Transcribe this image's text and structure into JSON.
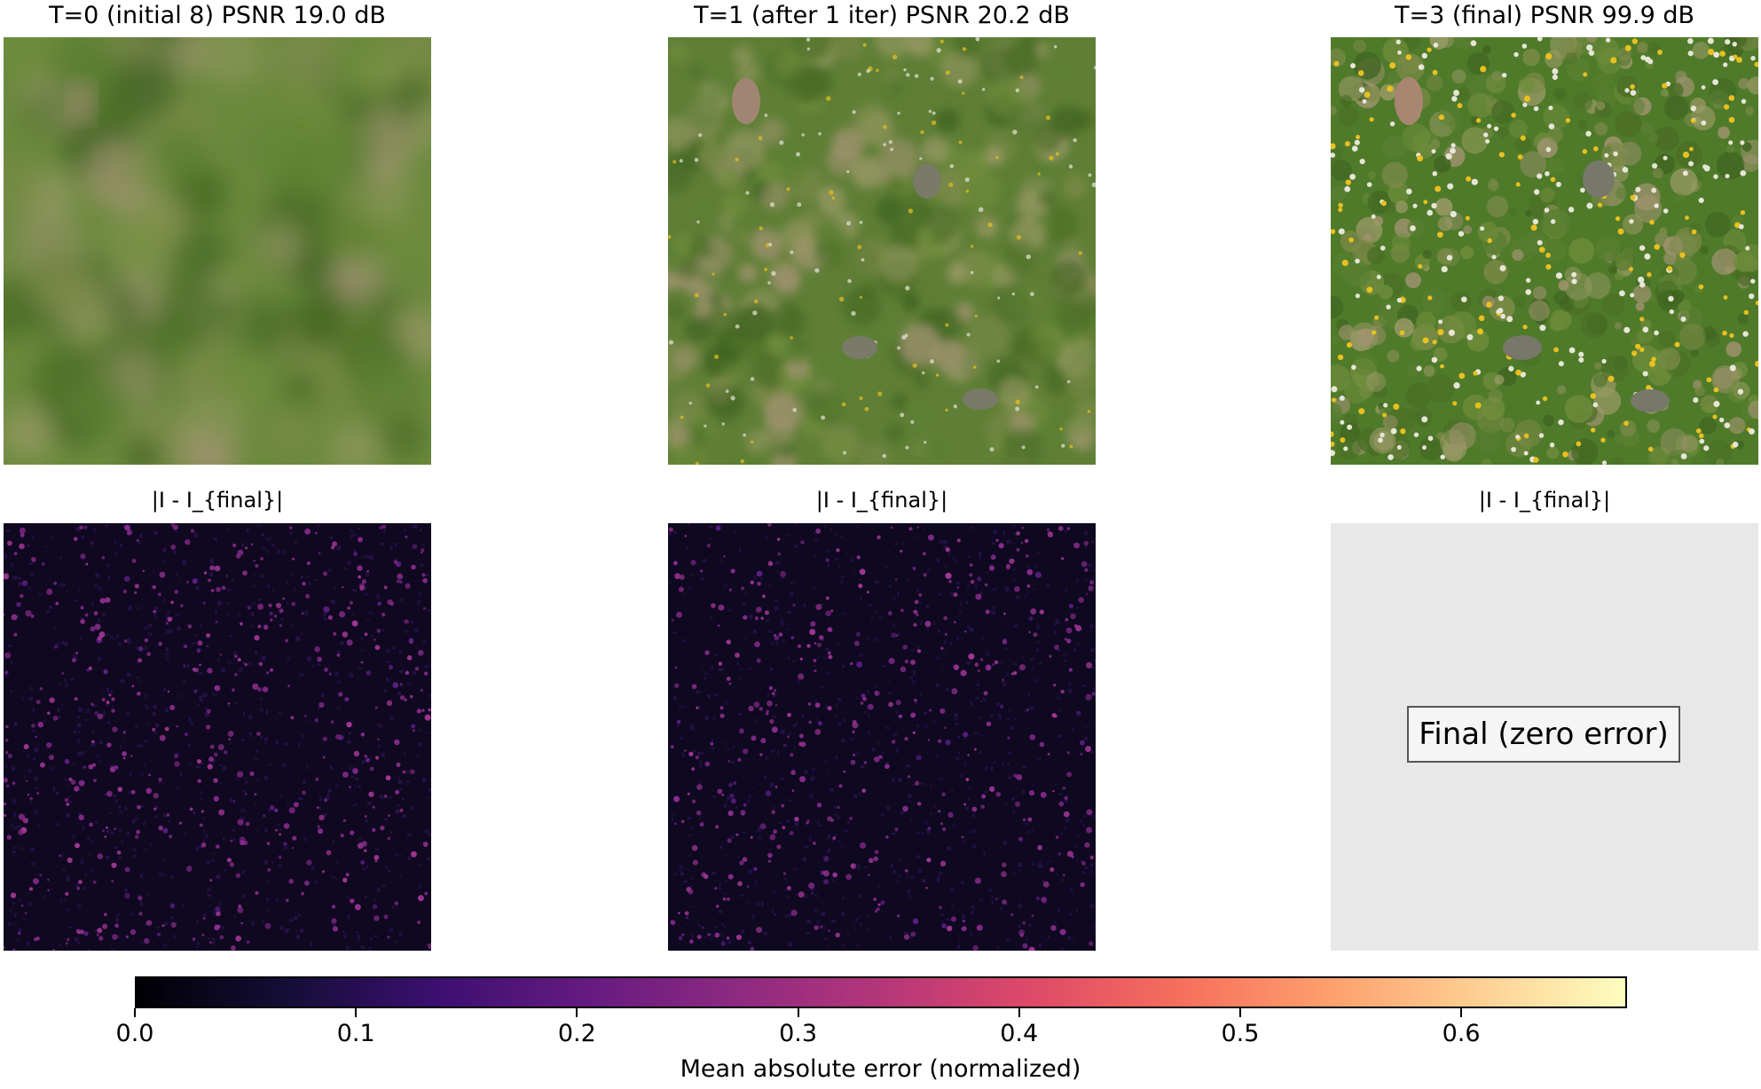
{
  "panels": {
    "titles": [
      "T=0 (initial 8)  PSNR 19.0 dB",
      "T=1 (after 1 iter)  PSNR 20.2 dB",
      "T=3 (final)  PSNR 99.9 dB"
    ],
    "error_title": "|I - I_{final}|",
    "final_note": "Final (zero error)"
  },
  "colorbar": {
    "label": "Mean absolute error (normalized)",
    "colormap": "magma",
    "range": [
      0.0,
      0.675
    ],
    "ticks": [
      "0.0",
      "0.1",
      "0.2",
      "0.3",
      "0.4",
      "0.5",
      "0.6"
    ],
    "tick_values": [
      0.0,
      0.1,
      0.2,
      0.3,
      0.4,
      0.5,
      0.6
    ]
  }
}
